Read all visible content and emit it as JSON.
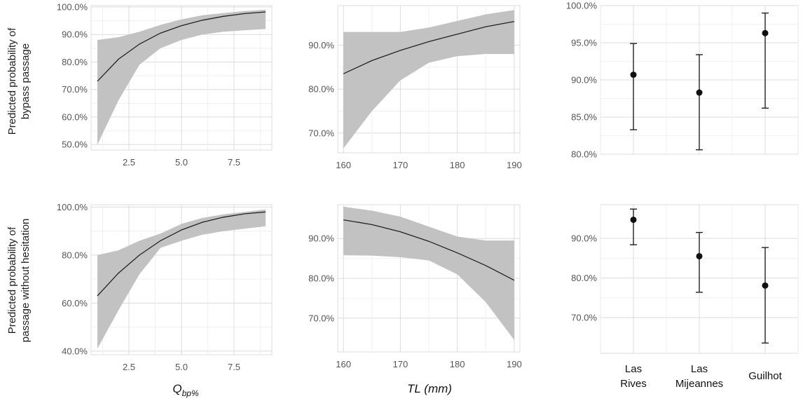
{
  "figure": {
    "row_titles": [
      [
        "Predicted probability of",
        "bypass passage"
      ],
      [
        "Predicted probability of",
        "passage without hesitation"
      ]
    ],
    "x_titles": [
      {
        "main": "Q",
        "sub": "bp%"
      },
      {
        "main": "TL (mm)",
        "sub": ""
      }
    ],
    "colors": {
      "band": "#c2c2c2",
      "line": "#222222",
      "grid": "#dcdcdc",
      "point": "#111111"
    }
  },
  "chart_data": [
    {
      "type": "line",
      "row": 0,
      "col": 0,
      "xlim": [
        0.7,
        9.3
      ],
      "ylim": [
        0.48,
        1.005
      ],
      "xticks": [
        2.5,
        5.0,
        7.5
      ],
      "xtick_labels": [
        "2.5",
        "5.0",
        "7.5"
      ],
      "yticks": [
        0.5,
        0.6,
        0.7,
        0.8,
        0.9,
        1.0
      ],
      "ytick_labels": [
        "50.0%",
        "60.0%",
        "70.0%",
        "80.0%",
        "90.0%",
        "100.0%"
      ],
      "grid": true,
      "show_xticks": true,
      "x": [
        1,
        2,
        3,
        4,
        5,
        6,
        7,
        8,
        9
      ],
      "y": [
        0.73,
        0.81,
        0.865,
        0.905,
        0.932,
        0.952,
        0.966,
        0.976,
        0.982
      ],
      "lower": [
        0.5,
        0.66,
        0.79,
        0.85,
        0.88,
        0.9,
        0.91,
        0.915,
        0.92
      ],
      "upper": [
        0.88,
        0.89,
        0.91,
        0.935,
        0.955,
        0.97,
        0.978,
        0.985,
        0.99
      ]
    },
    {
      "type": "line",
      "row": 0,
      "col": 1,
      "xlim": [
        159,
        191
      ],
      "ylim": [
        0.655,
        0.99
      ],
      "xticks": [
        160,
        170,
        180,
        190
      ],
      "xtick_labels": [
        "160",
        "170",
        "180",
        "190"
      ],
      "yticks": [
        0.7,
        0.8,
        0.9
      ],
      "ytick_labels": [
        "70.0%",
        "80.0%",
        "90.0%"
      ],
      "grid": true,
      "show_xticks": true,
      "x": [
        160,
        165,
        170,
        175,
        180,
        185,
        190
      ],
      "y": [
        0.835,
        0.865,
        0.888,
        0.908,
        0.925,
        0.942,
        0.954
      ],
      "lower": [
        0.665,
        0.75,
        0.82,
        0.86,
        0.875,
        0.88,
        0.88
      ],
      "upper": [
        0.93,
        0.93,
        0.93,
        0.94,
        0.955,
        0.97,
        0.98
      ]
    },
    {
      "type": "errorbar",
      "row": 0,
      "col": 2,
      "categories": [
        "Las Rives",
        "Las Mijeannes",
        "Guilhot"
      ],
      "ylim": [
        0.8,
        1.0
      ],
      "yticks": [
        0.8,
        0.85,
        0.9,
        0.95,
        1.0
      ],
      "ytick_labels": [
        "80.0%",
        "85.0%",
        "90.0%",
        "95.0%",
        "100.0%"
      ],
      "grid": true,
      "show_xticks": false,
      "values": [
        0.907,
        0.883,
        0.963
      ],
      "lower": [
        0.833,
        0.806,
        0.862
      ],
      "upper": [
        0.949,
        0.934,
        0.99
      ]
    },
    {
      "type": "line",
      "row": 1,
      "col": 0,
      "xlim": [
        0.7,
        9.3
      ],
      "ylim": [
        0.385,
        1.01
      ],
      "xticks": [
        2.5,
        5.0,
        7.5
      ],
      "xtick_labels": [
        "2.5",
        "5.0",
        "7.5"
      ],
      "yticks": [
        0.4,
        0.6,
        0.8,
        1.0
      ],
      "ytick_labels": [
        "40.0%",
        "60.0%",
        "80.0%",
        "100.0%"
      ],
      "grid": true,
      "show_xticks": true,
      "x": [
        1,
        2,
        3,
        4,
        5,
        6,
        7,
        8,
        9
      ],
      "y": [
        0.63,
        0.725,
        0.8,
        0.86,
        0.905,
        0.937,
        0.958,
        0.972,
        0.98
      ],
      "lower": [
        0.41,
        0.57,
        0.72,
        0.83,
        0.86,
        0.885,
        0.9,
        0.91,
        0.92
      ],
      "upper": [
        0.8,
        0.82,
        0.86,
        0.89,
        0.93,
        0.955,
        0.97,
        0.98,
        0.99
      ]
    },
    {
      "type": "line",
      "row": 1,
      "col": 1,
      "xlim": [
        159,
        191
      ],
      "ylim": [
        0.615,
        0.985
      ],
      "xticks": [
        160,
        170,
        180,
        190
      ],
      "xtick_labels": [
        "160",
        "170",
        "180",
        "190"
      ],
      "yticks": [
        0.7,
        0.8,
        0.9
      ],
      "ytick_labels": [
        "70.0%",
        "80.0%",
        "90.0%"
      ],
      "grid": true,
      "show_xticks": true,
      "x": [
        160,
        165,
        170,
        175,
        180,
        185,
        190
      ],
      "y": [
        0.947,
        0.935,
        0.917,
        0.893,
        0.864,
        0.832,
        0.795
      ],
      "lower": [
        0.858,
        0.857,
        0.853,
        0.845,
        0.81,
        0.74,
        0.645
      ],
      "upper": [
        0.98,
        0.97,
        0.955,
        0.93,
        0.905,
        0.895,
        0.895
      ]
    },
    {
      "type": "errorbar",
      "row": 1,
      "col": 2,
      "categories": [
        "Las Rives",
        "Las Mijeannes",
        "Guilhot"
      ],
      "category_lines": [
        [
          "Las",
          "Rives"
        ],
        [
          "Las",
          "Mijeannes"
        ],
        [
          "Guilhot"
        ]
      ],
      "ylim": [
        0.61,
        0.985
      ],
      "yticks": [
        0.7,
        0.8,
        0.9
      ],
      "ytick_labels": [
        "70.0%",
        "80.0%",
        "90.0%"
      ],
      "grid": true,
      "show_xticks": false,
      "values": [
        0.947,
        0.855,
        0.781
      ],
      "lower": [
        0.884,
        0.764,
        0.636
      ],
      "upper": [
        0.974,
        0.915,
        0.877
      ]
    }
  ]
}
